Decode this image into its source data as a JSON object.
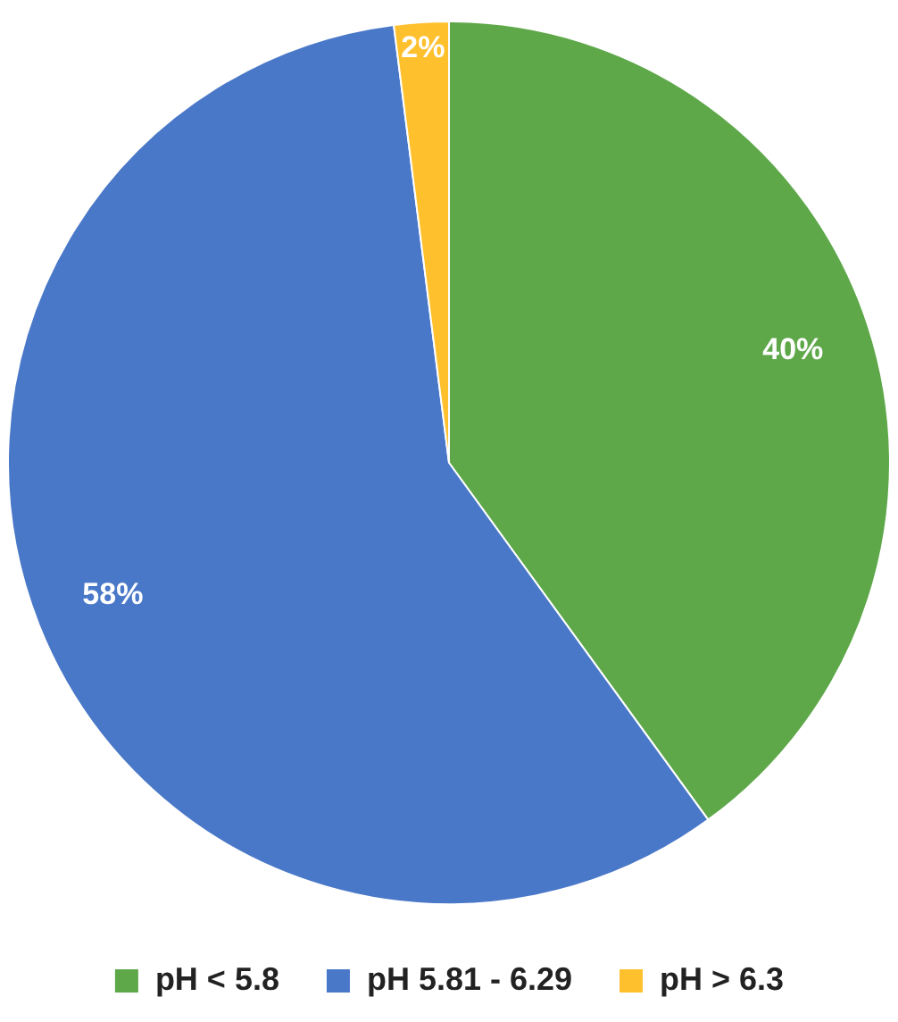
{
  "chart_data": {
    "type": "pie",
    "categories": [
      "pH < 5.8",
      "pH 5.81 - 6.29",
      "pH > 6.3"
    ],
    "values": [
      40,
      58,
      2
    ],
    "colors": [
      "#5ea84a",
      "#4a78c8",
      "#ffc02e"
    ],
    "value_labels": [
      "40%",
      "58%",
      "2%"
    ],
    "legend": "bottom"
  }
}
